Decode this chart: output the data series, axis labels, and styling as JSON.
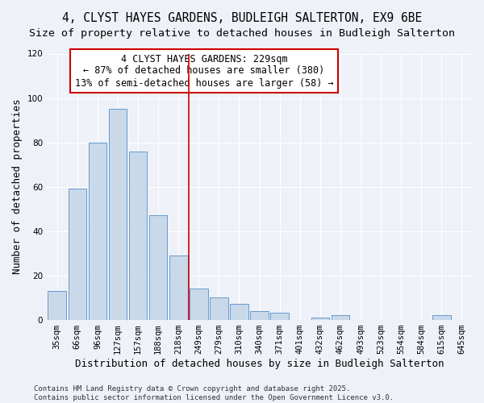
{
  "title_line1": "4, CLYST HAYES GARDENS, BUDLEIGH SALTERTON, EX9 6BE",
  "title_line2": "Size of property relative to detached houses in Budleigh Salterton",
  "xlabel": "Distribution of detached houses by size in Budleigh Salterton",
  "ylabel": "Number of detached properties",
  "categories": [
    "35sqm",
    "66sqm",
    "96sqm",
    "127sqm",
    "157sqm",
    "188sqm",
    "218sqm",
    "249sqm",
    "279sqm",
    "310sqm",
    "340sqm",
    "371sqm",
    "401sqm",
    "432sqm",
    "462sqm",
    "493sqm",
    "523sqm",
    "554sqm",
    "584sqm",
    "615sqm",
    "645sqm"
  ],
  "values": [
    13,
    59,
    80,
    95,
    76,
    47,
    29,
    14,
    10,
    7,
    4,
    3,
    0,
    1,
    2,
    0,
    0,
    0,
    0,
    2,
    0
  ],
  "bar_color": "#c9d9ea",
  "bar_edge_color": "#6699cc",
  "background_color": "#eef2f8",
  "grid_color": "#ffffff",
  "vline_color": "#cc0000",
  "annotation_text": "4 CLYST HAYES GARDENS: 229sqm\n← 87% of detached houses are smaller (380)\n13% of semi-detached houses are larger (58) →",
  "annotation_box_color": "#ffffff",
  "annotation_box_edge_color": "#cc0000",
  "vline_x": 6.5,
  "ylim": [
    0,
    120
  ],
  "yticks": [
    0,
    20,
    40,
    60,
    80,
    100,
    120
  ],
  "footer_text": "Contains HM Land Registry data © Crown copyright and database right 2025.\nContains public sector information licensed under the Open Government Licence v3.0.",
  "title_fontsize": 10.5,
  "subtitle_fontsize": 9.5,
  "axis_label_fontsize": 9,
  "tick_fontsize": 7.5,
  "annotation_fontsize": 8.5,
  "footer_fontsize": 6.5
}
